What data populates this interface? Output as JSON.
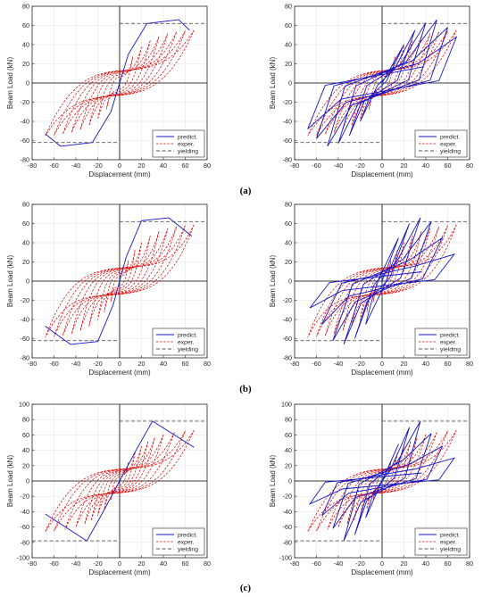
{
  "captions": [
    "(a)",
    "(b)",
    "(c)"
  ],
  "colors": {
    "predict": "#1414c8",
    "exper": "#e60000",
    "yielding": "#555555",
    "grid": "#e6e6e6"
  },
  "chart_data": [
    {
      "type": "line",
      "panel": "(a)",
      "position": "left",
      "xlabel": "Displacement (mm)",
      "ylabel": "Beam Load (kN)",
      "xlim": [
        -80,
        80
      ],
      "ylim": [
        -80,
        80
      ],
      "xticks": [
        -80,
        -60,
        -40,
        -20,
        0,
        20,
        40,
        60,
        80
      ],
      "yticks": [
        -80,
        -60,
        -40,
        -20,
        0,
        20,
        40,
        60,
        80
      ],
      "grid": true,
      "legend_position": "bottom-right",
      "yielding": 62,
      "legend": [
        "predict.",
        "exper.",
        "yielding"
      ],
      "series": [
        {
          "name": "predict.",
          "style": "solid",
          "points": [
            [
              -68,
              -53
            ],
            [
              -54,
              -66
            ],
            [
              -25,
              -62
            ],
            [
              -8,
              -30
            ],
            [
              0,
              0
            ],
            [
              8,
              30
            ],
            [
              25,
              62
            ],
            [
              54,
              66
            ],
            [
              64,
              55
            ]
          ]
        },
        {
          "name": "exper.",
          "style": "dashed",
          "amps": [
            12,
            20,
            28,
            36,
            44,
            52,
            60,
            68
          ],
          "peak": 60,
          "sharpness": 3.0
        }
      ]
    },
    {
      "type": "line",
      "panel": "(a)",
      "position": "right",
      "xlabel": "Displacement (mm)",
      "ylabel": "Beam Load (kN)",
      "xlim": [
        -80,
        80
      ],
      "ylim": [
        -80,
        80
      ],
      "xticks": [
        -80,
        -60,
        -40,
        -20,
        0,
        20,
        40,
        60,
        80
      ],
      "yticks": [
        -80,
        -60,
        -40,
        -20,
        0,
        20,
        40,
        60,
        80
      ],
      "grid": true,
      "legend_position": "bottom-right",
      "yielding": 62,
      "legend": [
        "predict.",
        "exper.",
        "yielding"
      ],
      "series": [
        {
          "name": "predict.",
          "style": "solid",
          "amps": [
            20,
            30,
            40,
            50,
            60,
            68
          ],
          "peaks": [
            40,
            55,
            63,
            66,
            58,
            48
          ],
          "unload": 16
        },
        {
          "name": "exper.",
          "style": "dashed",
          "amps": [
            12,
            20,
            28,
            36,
            44,
            52,
            60,
            68
          ],
          "peak": 60,
          "sharpness": 3.0
        }
      ]
    },
    {
      "type": "line",
      "panel": "(b)",
      "position": "left",
      "xlabel": "Displacement (mm)",
      "ylabel": "Beam Load (kN)",
      "xlim": [
        -80,
        80
      ],
      "ylim": [
        -80,
        80
      ],
      "xticks": [
        -80,
        -60,
        -40,
        -20,
        0,
        20,
        40,
        60,
        80
      ],
      "yticks": [
        -80,
        -60,
        -40,
        -20,
        0,
        20,
        40,
        60,
        80
      ],
      "grid": true,
      "legend_position": "bottom-right",
      "yielding": 62,
      "legend": [
        "predict.",
        "exper.",
        "yielding"
      ],
      "series": [
        {
          "name": "predict.",
          "style": "solid",
          "points": [
            [
              -68,
              -47
            ],
            [
              -45,
              -66
            ],
            [
              -20,
              -63
            ],
            [
              -6,
              -25
            ],
            [
              0,
              0
            ],
            [
              6,
              25
            ],
            [
              20,
              63
            ],
            [
              45,
              66
            ],
            [
              66,
              47
            ]
          ]
        },
        {
          "name": "exper.",
          "style": "dashed",
          "amps": [
            8,
            14,
            20,
            28,
            36,
            44,
            52,
            60,
            68
          ],
          "peak": 64,
          "sharpness": 3.5
        }
      ]
    },
    {
      "type": "line",
      "panel": "(b)",
      "position": "right",
      "xlabel": "Displacement (mm)",
      "ylabel": "Beam Load (kN)",
      "xlim": [
        -80,
        80
      ],
      "ylim": [
        -80,
        80
      ],
      "xticks": [
        -80,
        -60,
        -40,
        -20,
        0,
        20,
        40,
        60,
        80
      ],
      "yticks": [
        -80,
        -60,
        -40,
        -20,
        0,
        20,
        40,
        60,
        80
      ],
      "grid": true,
      "legend_position": "bottom-right",
      "yielding": 62,
      "legend": [
        "predict.",
        "exper.",
        "yielding"
      ],
      "series": [
        {
          "name": "predict.",
          "style": "solid",
          "amps": [
            15,
            25,
            35,
            45,
            55,
            66
          ],
          "peaks": [
            45,
            60,
            66,
            62,
            45,
            28
          ],
          "unload": 18
        },
        {
          "name": "exper.",
          "style": "dashed",
          "amps": [
            8,
            14,
            20,
            28,
            36,
            44,
            52,
            60,
            68
          ],
          "peak": 64,
          "sharpness": 3.5
        }
      ]
    },
    {
      "type": "line",
      "panel": "(c)",
      "position": "left",
      "xlabel": "Displacement (mm)",
      "ylabel": "Beam Load (kN)",
      "xlim": [
        -80,
        80
      ],
      "ylim": [
        -100,
        100
      ],
      "xticks": [
        -80,
        -60,
        -40,
        -20,
        0,
        20,
        40,
        60,
        80
      ],
      "yticks": [
        -100,
        -80,
        -60,
        -40,
        -20,
        0,
        20,
        40,
        60,
        80,
        100
      ],
      "grid": true,
      "legend_position": "bottom-right",
      "yielding": 78,
      "legend": [
        "predict.",
        "exper.",
        "yielding"
      ],
      "series": [
        {
          "name": "predict.",
          "style": "solid",
          "points": [
            [
              -68,
              -43
            ],
            [
              -30,
              -78
            ],
            [
              -15,
              -40
            ],
            [
              0,
              0
            ],
            [
              15,
              40
            ],
            [
              30,
              78
            ],
            [
              68,
              44
            ]
          ]
        },
        {
          "name": "exper.",
          "style": "dashed",
          "amps": [
            8,
            14,
            20,
            26,
            32,
            40,
            50,
            60,
            68
          ],
          "peak": 72,
          "sharpness": 3.2
        }
      ]
    },
    {
      "type": "line",
      "panel": "(c)",
      "position": "right",
      "xlabel": "Displacement (mm)",
      "ylabel": "Beam Load (kN)",
      "xlim": [
        -80,
        80
      ],
      "ylim": [
        -100,
        100
      ],
      "xticks": [
        -80,
        -60,
        -40,
        -20,
        0,
        20,
        40,
        60,
        80
      ],
      "yticks": [
        -100,
        -80,
        -60,
        -40,
        -20,
        0,
        20,
        40,
        60,
        80,
        100
      ],
      "grid": true,
      "legend_position": "bottom-right",
      "yielding": 78,
      "legend": [
        "predict.",
        "exper.",
        "yielding"
      ],
      "series": [
        {
          "name": "predict.",
          "style": "solid",
          "amps": [
            15,
            25,
            35,
            45,
            55,
            66
          ],
          "peaks": [
            48,
            70,
            78,
            62,
            45,
            30
          ],
          "unload": 14
        },
        {
          "name": "exper.",
          "style": "dashed",
          "amps": [
            8,
            14,
            20,
            26,
            32,
            40,
            50,
            60,
            68
          ],
          "peak": 72,
          "sharpness": 3.2
        }
      ]
    }
  ]
}
